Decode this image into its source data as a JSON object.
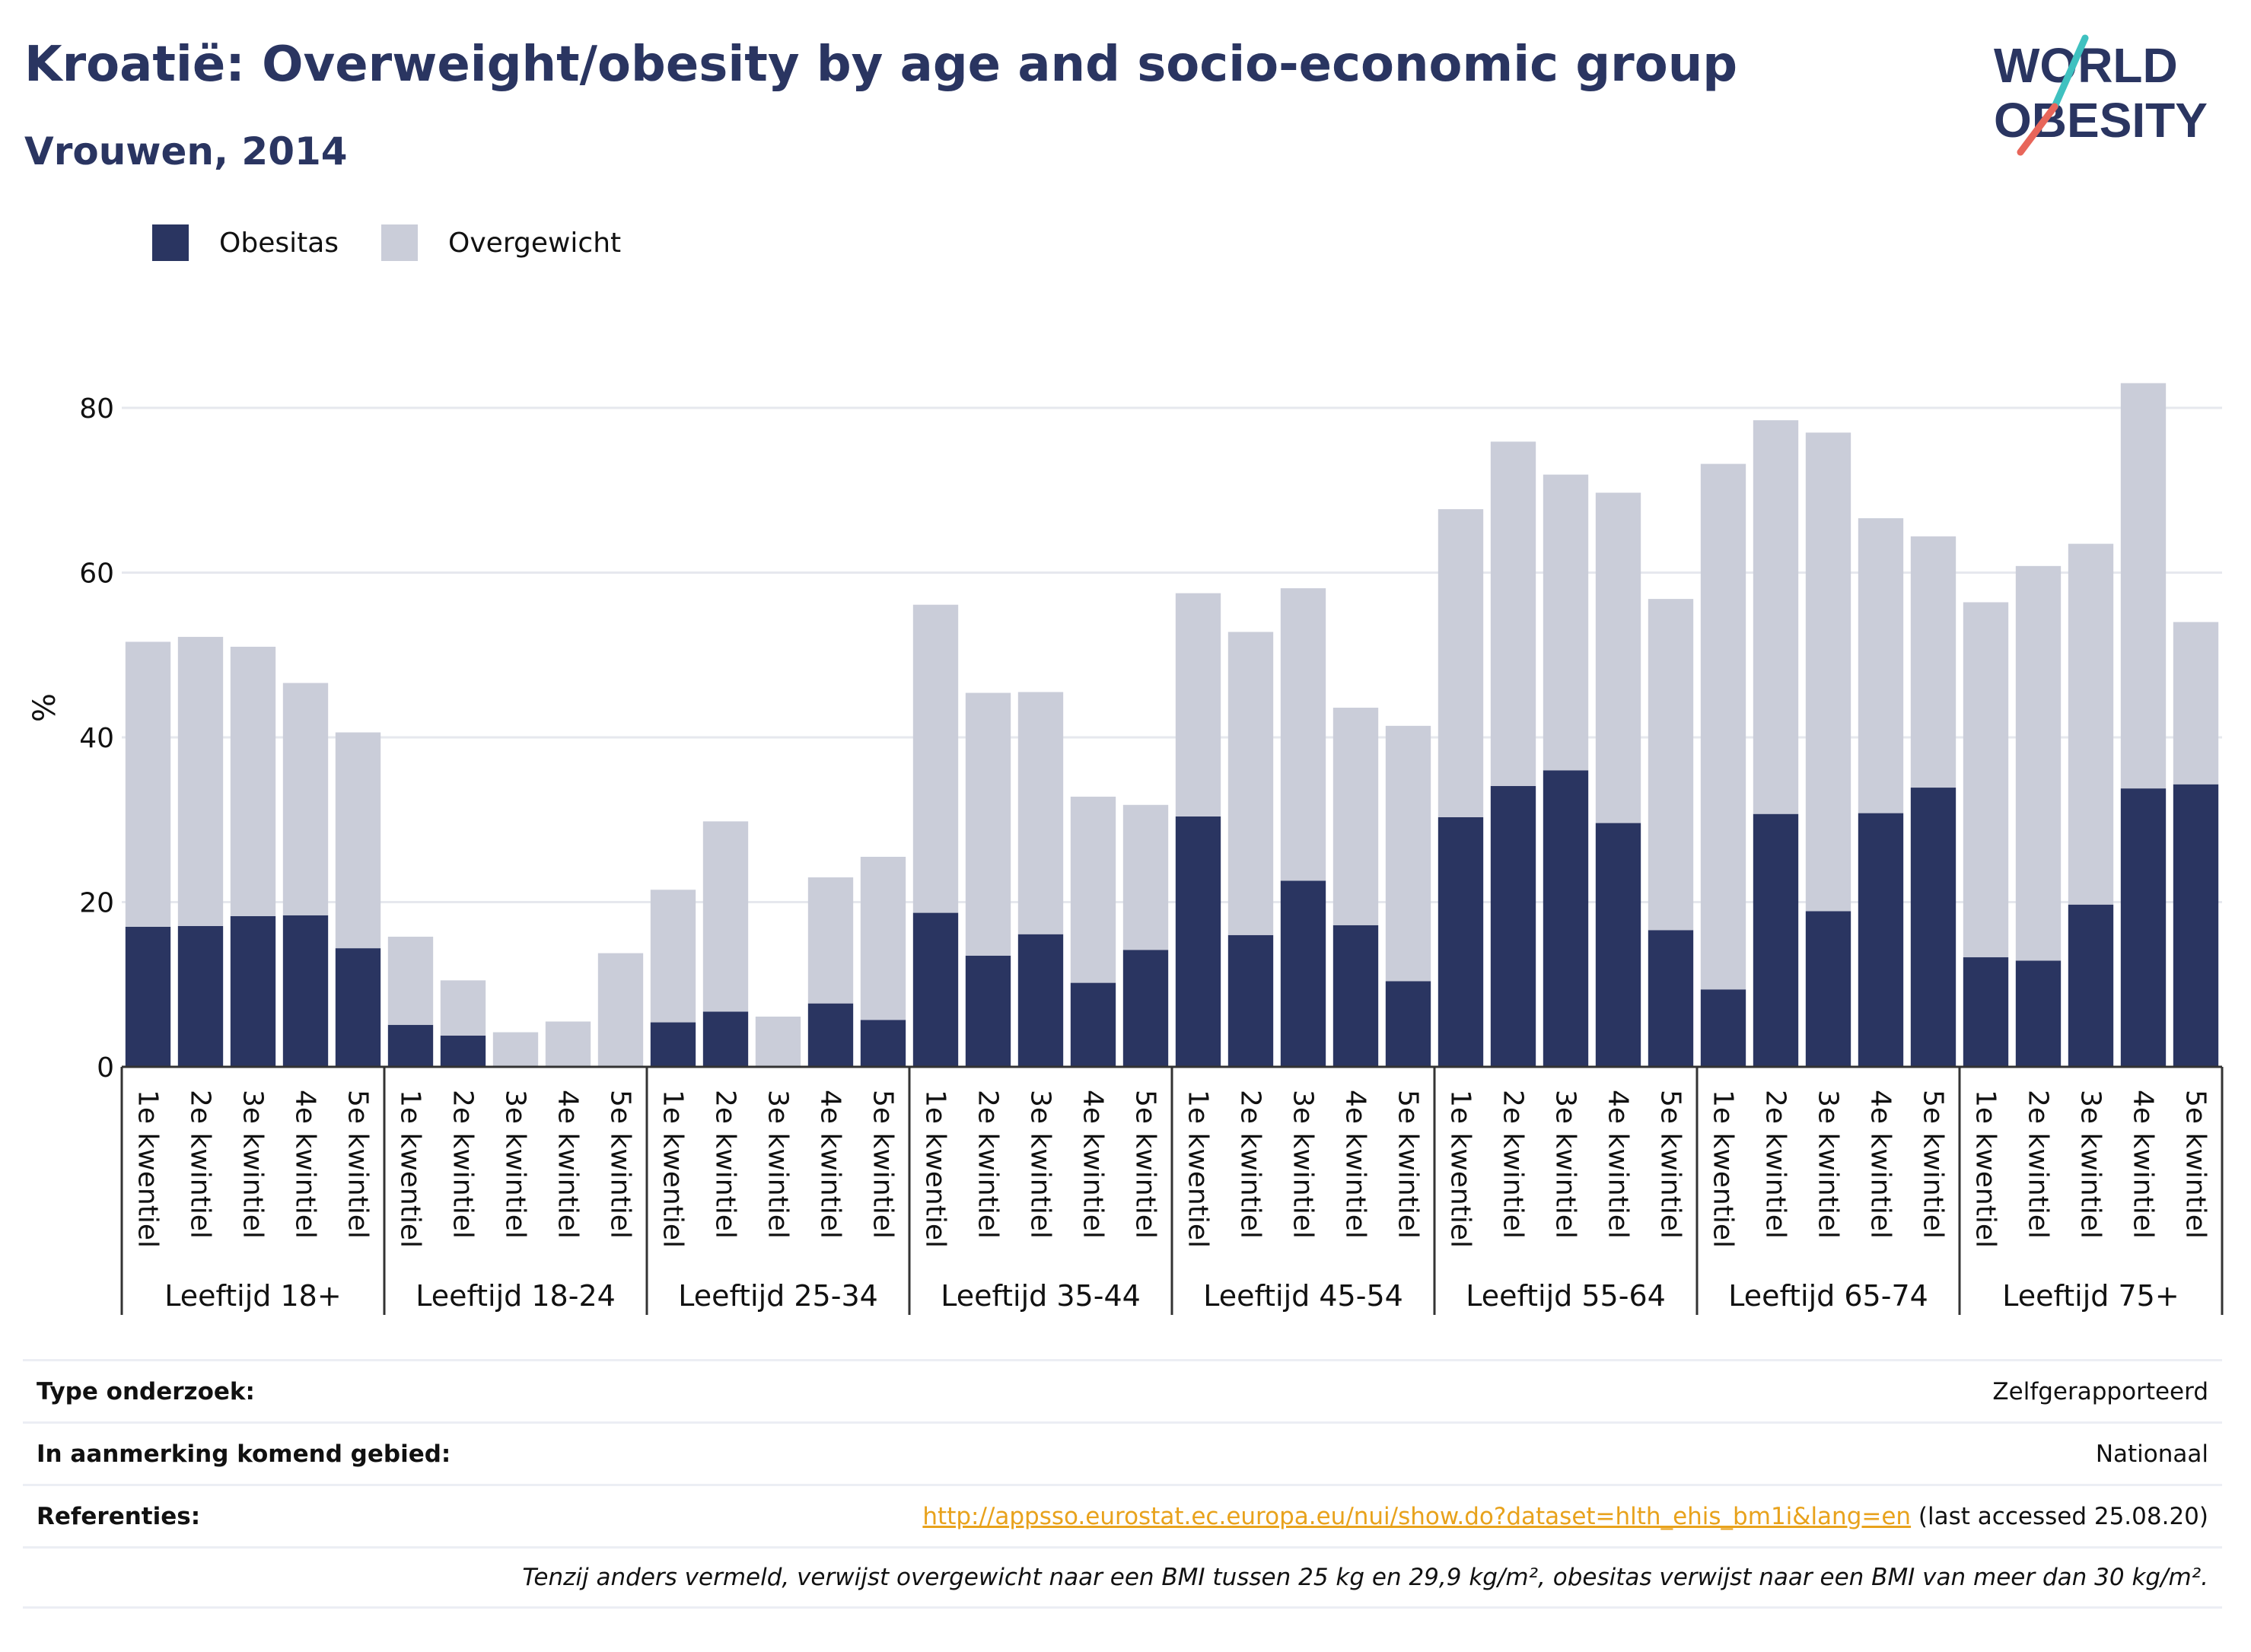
{
  "header": {
    "title": "Kroatië: Overweight/obesity by age and socio-economic group",
    "subtitle": "Vrouwen, 2014"
  },
  "logo": {
    "line1": "WORLD",
    "line2": "OBESITY"
  },
  "colors": {
    "obesity": "#2a3561",
    "overweight": "#cacdd9",
    "accent_teal": "#3fc1c0",
    "accent_red": "#e8665a",
    "link": "#e8a21c"
  },
  "chart_data": {
    "type": "bar",
    "stacked": true,
    "ylabel": "%",
    "ylim": [
      0,
      90
    ],
    "yticks": [
      0,
      20,
      40,
      60,
      80
    ],
    "grid": true,
    "legend_position": "top-left",
    "groups": [
      "Leeftijd 18+",
      "Leeftijd 18-24",
      "Leeftijd 25-34",
      "Leeftijd 35-44",
      "Leeftijd 45-54",
      "Leeftijd 55-64",
      "Leeftijd 65-74",
      "Leeftijd 75+"
    ],
    "categories": [
      "1e kwentiel",
      "2e kwintiel",
      "3e kwintiel",
      "4e kwintiel",
      "5e kwintiel"
    ],
    "series": [
      {
        "name": "Obesitas",
        "color": "#2a3561",
        "values": [
          [
            17.0,
            17.1,
            18.3,
            18.4,
            14.4
          ],
          [
            5.1,
            3.8,
            0,
            0,
            0
          ],
          [
            5.4,
            6.7,
            0,
            7.7,
            5.7
          ],
          [
            18.7,
            13.5,
            16.1,
            10.2,
            14.2
          ],
          [
            30.4,
            16.0,
            22.6,
            17.2,
            10.4
          ],
          [
            30.3,
            34.1,
            36.0,
            29.6,
            16.6
          ],
          [
            9.4,
            30.7,
            18.9,
            30.8,
            33.9
          ],
          [
            13.3,
            12.9,
            19.7,
            33.8,
            34.3
          ]
        ]
      },
      {
        "name": "Overgewicht",
        "color": "#cacdd9",
        "values": [
          [
            34.6,
            35.1,
            32.7,
            28.2,
            26.2
          ],
          [
            10.7,
            6.7,
            4.2,
            5.5,
            13.8
          ],
          [
            16.1,
            23.1,
            6.1,
            15.3,
            19.8
          ],
          [
            37.4,
            31.9,
            29.4,
            22.6,
            17.6
          ],
          [
            27.1,
            36.8,
            35.5,
            26.4,
            31.0
          ],
          [
            37.4,
            41.8,
            35.9,
            40.1,
            40.2
          ],
          [
            63.8,
            47.8,
            58.1,
            35.8,
            30.5
          ],
          [
            43.1,
            47.9,
            43.8,
            49.2,
            19.7
          ]
        ]
      }
    ]
  },
  "info": {
    "type_label": "Type onderzoek:",
    "type_value": "Zelfgerapporteerd",
    "area_label": "In aanmerking komend gebied:",
    "area_value": "Nationaal",
    "refs_label": "Referenties:",
    "refs_link": "http://appsso.eurostat.ec.europa.eu/nui/show.do?dataset=hlth_ehis_bm1i&lang=en",
    "refs_suffix": " (last accessed 25.08.20)",
    "note": "Tenzij anders vermeld, verwijst overgewicht naar een BMI tussen 25 kg en 29,9 kg/m², obesitas verwijst naar een BMI van meer dan 30 kg/m²."
  }
}
